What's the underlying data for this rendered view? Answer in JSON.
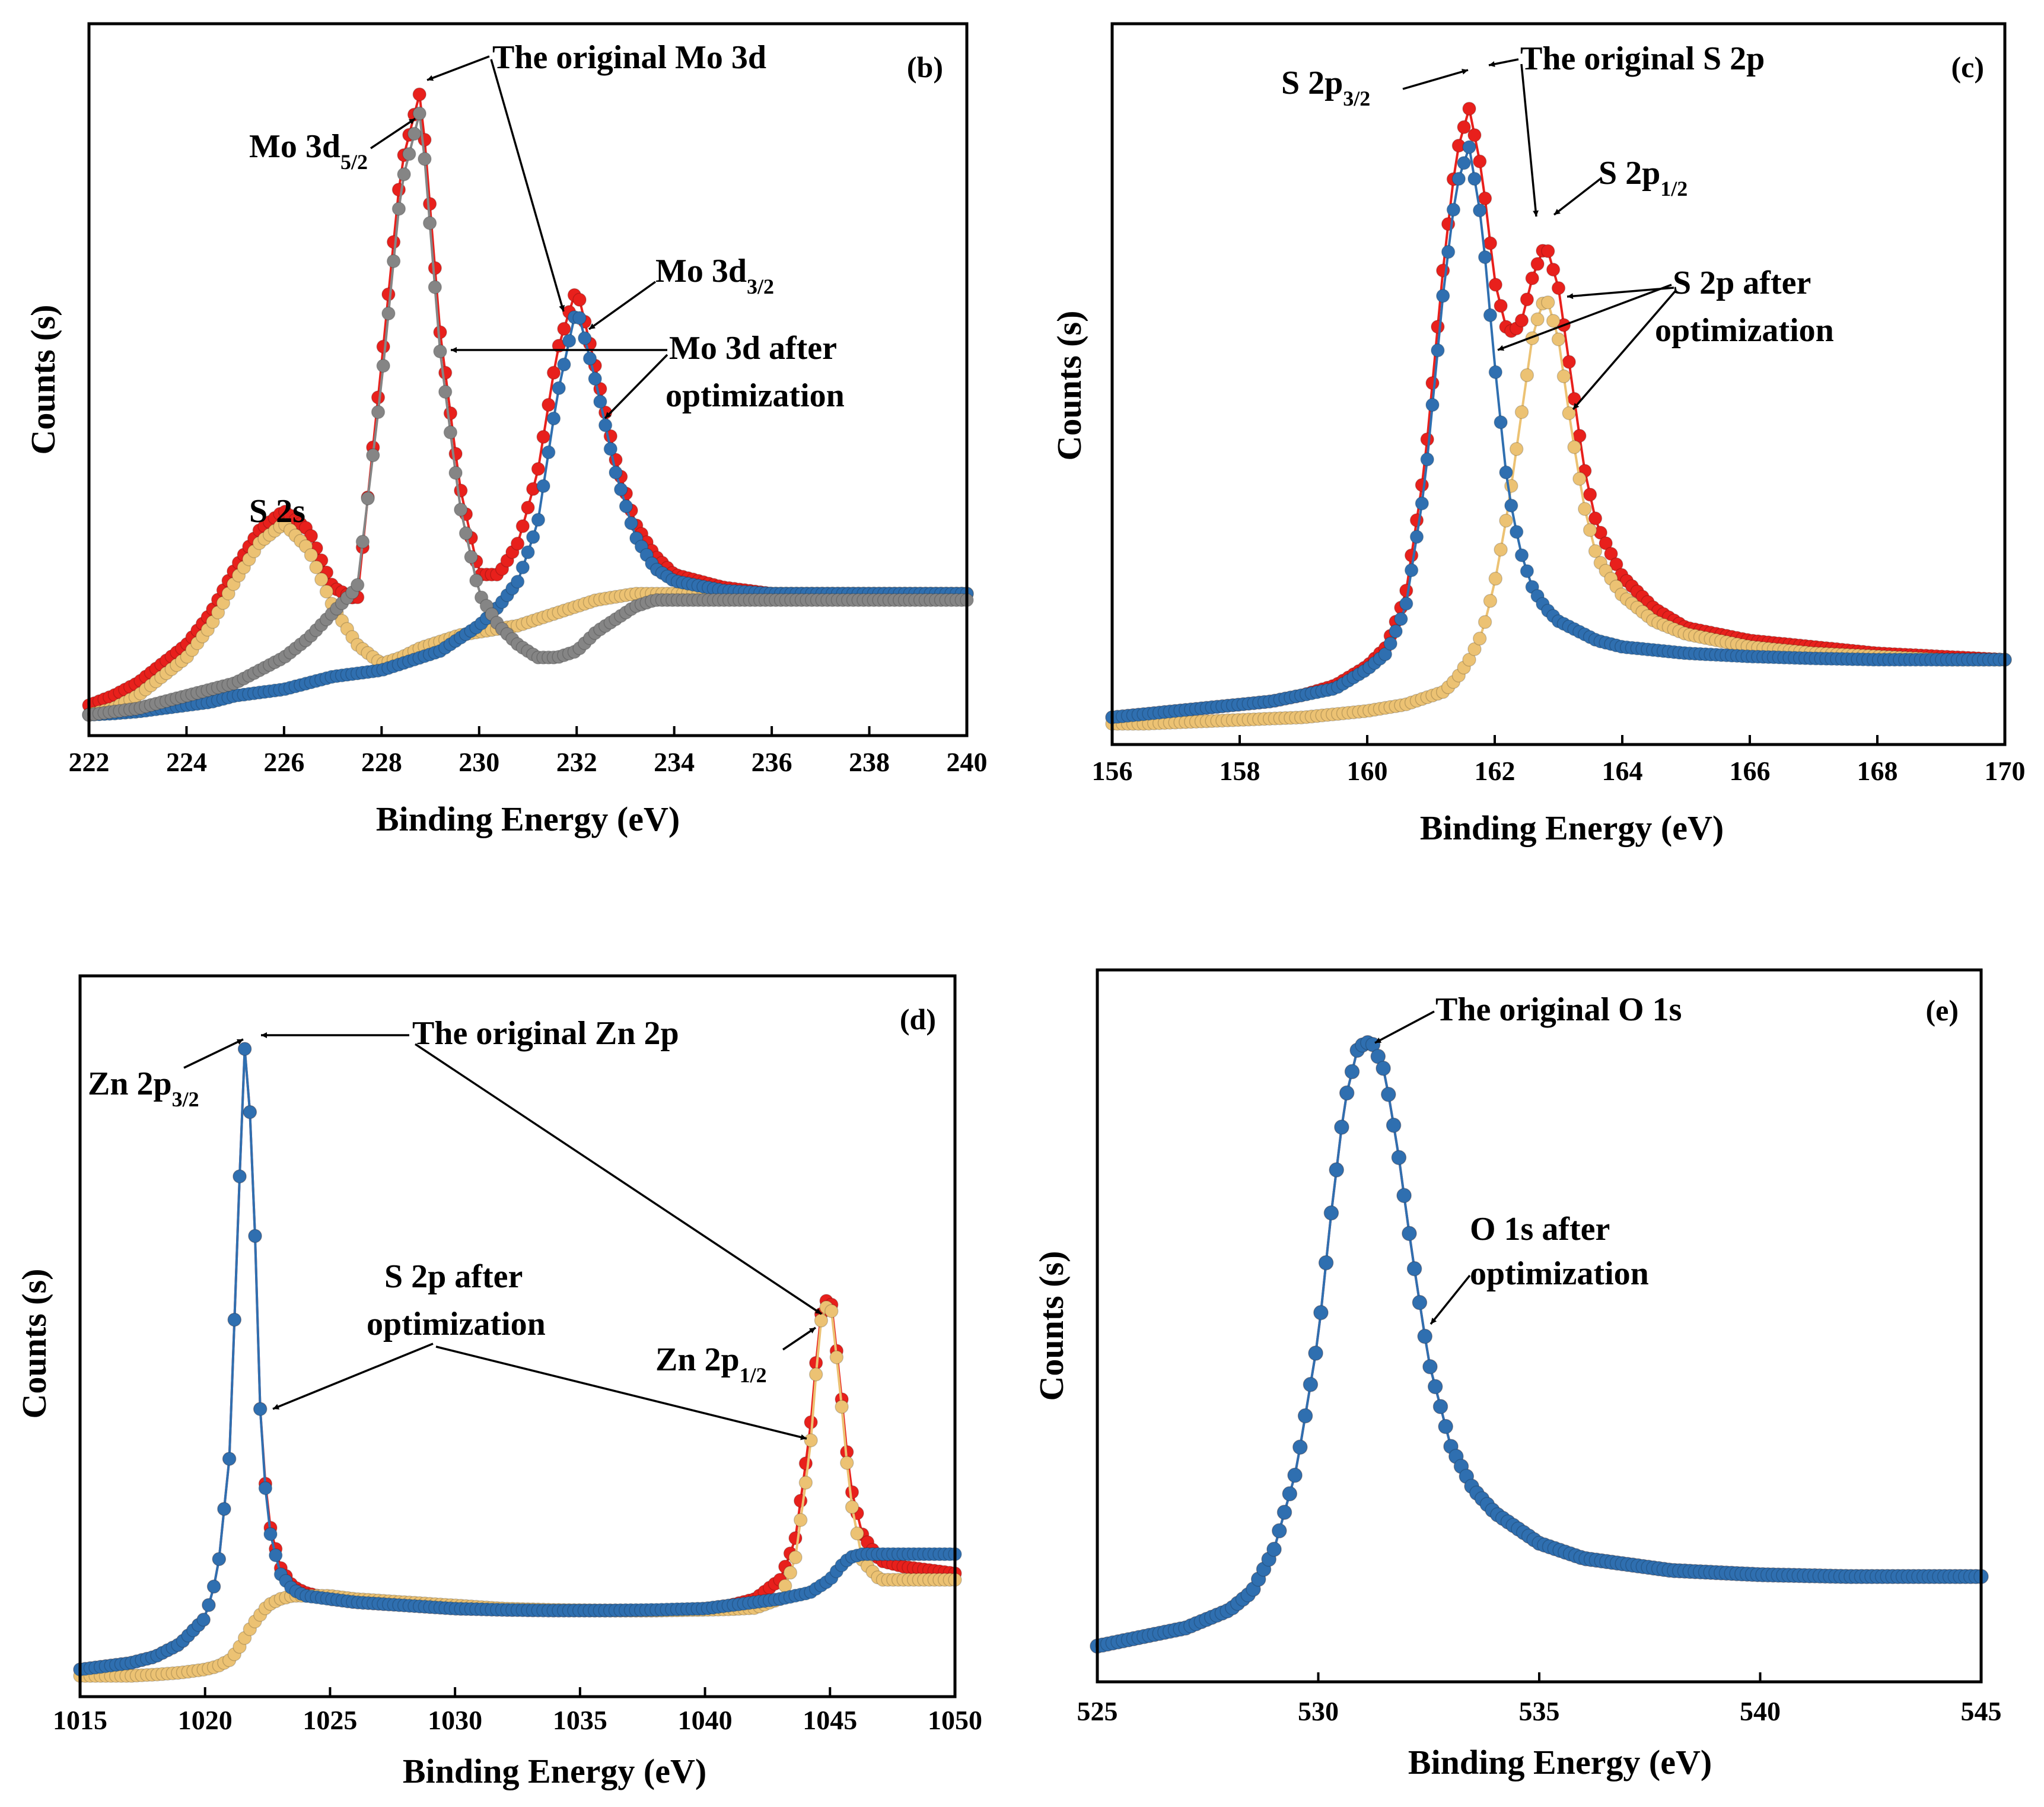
{
  "colors": {
    "original": "#e8201c",
    "blue": "#2f6fb0",
    "gray": "#858585",
    "yellow": "#ecc273",
    "axis": "#000000"
  },
  "chart_data": [
    {
      "type": "scatter",
      "panel": "(b)",
      "xlabel": "Binding Energy (eV)",
      "ylabel": "Counts (s)",
      "xlim": [
        222,
        240
      ],
      "ylim": [
        0,
        100
      ],
      "xticks": [
        "222",
        "224",
        "226",
        "228",
        "230",
        "232",
        "234",
        "236",
        "238",
        "240"
      ],
      "x": [
        222.0,
        222.5,
        223.0,
        223.5,
        224.0,
        224.5,
        225.0,
        225.5,
        226.0,
        226.5,
        227.0,
        227.5,
        228.0,
        228.4,
        228.8,
        229.2,
        229.6,
        230.0,
        230.4,
        230.8,
        231.2,
        231.6,
        232.0,
        232.4,
        232.8,
        233.2,
        233.6,
        234.0,
        235.0,
        236.0,
        237.0,
        238.0,
        239.0,
        240.0
      ],
      "series": [
        {
          "name": "The original Mo 3d",
          "color": "original",
          "values": [
            1.5,
            3,
            5,
            8,
            11,
            16,
            23,
            29,
            32,
            29,
            20,
            18,
            55,
            86,
            98,
            60,
            36,
            22,
            22,
            27,
            38,
            57,
            67,
            54,
            40,
            30,
            25,
            22,
            20,
            19,
            19,
            19,
            19,
            19
          ]
        },
        {
          "name": "Mo 3d 5/2 after optimization",
          "color": "gray",
          "values": [
            0,
            0.5,
            1,
            2,
            3,
            4,
            5,
            7,
            9,
            12,
            16,
            20,
            52,
            83,
            95,
            57,
            33,
            19,
            14,
            11,
            9,
            9,
            10,
            13,
            15,
            17,
            18,
            18,
            18,
            18,
            18,
            18,
            18,
            18
          ]
        },
        {
          "name": "Mo 3d 3/2 after optimization",
          "color": "blue",
          "values": [
            0,
            0.2,
            0.5,
            1,
            1.5,
            2,
            3,
            3.5,
            4,
            5,
            6,
            6.5,
            7,
            8,
            9,
            10,
            12,
            14,
            17,
            21,
            30,
            50,
            64,
            52,
            38,
            28,
            23,
            21,
            19.5,
            19,
            19,
            19,
            19,
            19
          ]
        },
        {
          "name": "S 2s after optimization",
          "color": "yellow",
          "values": [
            0,
            1,
            3,
            6,
            9,
            14,
            21,
            27,
            30,
            26,
            17,
            11,
            8,
            9,
            10.5,
            11.5,
            12.5,
            13,
            13.5,
            14,
            15,
            16,
            17,
            18,
            18.5,
            19,
            19,
            19,
            19,
            19,
            19,
            19,
            19,
            19
          ]
        }
      ],
      "annotations": [
        {
          "text": "The original Mo 3d",
          "sub": ""
        },
        {
          "text": "Mo 3d",
          "sub": "5/2"
        },
        {
          "text": "Mo 3d",
          "sub": "3/2"
        },
        {
          "text": "Mo 3d after",
          "sub": ""
        },
        {
          "text": "optimization",
          "sub": ""
        },
        {
          "text": "S 2s",
          "sub": ""
        }
      ]
    },
    {
      "type": "scatter",
      "panel": "(c)",
      "xlabel": "Binding Energy (eV)",
      "ylabel": "Counts (s)",
      "xlim": [
        156,
        170
      ],
      "ylim": [
        0,
        100
      ],
      "xticks": [
        "156",
        "158",
        "160",
        "162",
        "164",
        "166",
        "168",
        "170"
      ],
      "x": [
        156.0,
        156.5,
        157.0,
        157.5,
        158.0,
        158.5,
        159.0,
        159.5,
        160.0,
        160.3,
        160.6,
        160.9,
        161.2,
        161.4,
        161.6,
        161.8,
        162.0,
        162.2,
        162.4,
        162.6,
        162.8,
        163.0,
        163.2,
        163.4,
        163.6,
        164.0,
        164.5,
        165.0,
        166.0,
        167.0,
        168.0,
        169.0,
        170.0
      ],
      "series": [
        {
          "name": "The original S 2p",
          "color": "original",
          "values": [
            1,
            1.5,
            2,
            2.5,
            3,
            3.5,
            4.5,
            6,
            9,
            12,
            20,
            40,
            72,
            89,
            96,
            86,
            69,
            61,
            62,
            70,
            75,
            68,
            54,
            40,
            31,
            23,
            18,
            15,
            13,
            12,
            11,
            10.5,
            10
          ]
        },
        {
          "name": "S 2p3/2 after optimization",
          "color": "blue",
          "values": [
            1,
            1.5,
            2,
            2.5,
            3,
            3.5,
            4.5,
            5.5,
            8.5,
            11,
            18,
            37,
            68,
            84,
            90,
            78,
            56,
            37,
            27,
            21,
            18,
            16,
            15,
            14,
            13,
            12,
            11.5,
            11,
            10.5,
            10.2,
            10,
            10,
            10
          ]
        },
        {
          "name": "S 2p1/2 after optimization",
          "color": "yellow",
          "values": [
            0,
            0,
            0.2,
            0.4,
            0.6,
            0.8,
            1,
            1.5,
            2,
            2.5,
            3,
            4,
            5,
            7,
            10,
            14,
            22,
            33,
            47,
            61,
            67,
            60,
            46,
            34,
            26,
            20,
            16,
            14,
            12,
            11,
            10.5,
            10,
            10
          ]
        }
      ],
      "annotations": [
        {
          "text": "The original S 2p",
          "sub": ""
        },
        {
          "text": "S 2p",
          "sub": "3/2"
        },
        {
          "text": "S 2p",
          "sub": "1/2"
        },
        {
          "text": "S 2p after",
          "sub": ""
        },
        {
          "text": "optimization",
          "sub": ""
        }
      ]
    },
    {
      "type": "scatter",
      "panel": "(d)",
      "xlabel": "Binding Energy (eV)",
      "ylabel": "Counts (s)",
      "xlim": [
        1015,
        1050
      ],
      "ylim": [
        0,
        100
      ],
      "xticks": [
        "1015",
        "1020",
        "1025",
        "1030",
        "1035",
        "1040",
        "1045",
        "1050"
      ],
      "x": [
        1015,
        1016,
        1017,
        1018,
        1019,
        1020,
        1020.5,
        1021,
        1021.3,
        1021.6,
        1021.9,
        1022.2,
        1022.5,
        1023,
        1023.5,
        1024,
        1025,
        1026,
        1028,
        1030,
        1032,
        1034,
        1036,
        1038,
        1040,
        1041,
        1042,
        1043,
        1043.6,
        1044.2,
        1044.6,
        1045,
        1045.4,
        1045.8,
        1046.3,
        1047,
        1048,
        1049,
        1050
      ],
      "series": [
        {
          "name": "The original Zn 2p",
          "color": "original",
          "values": [
            1,
            1.5,
            2,
            3,
            5,
            9,
            16,
            35,
            70,
            99,
            82,
            42,
            25,
            17,
            14,
            13,
            12,
            11.5,
            11,
            10.5,
            10.3,
            10.2,
            10.2,
            10.2,
            10.5,
            11,
            12,
            15,
            21,
            38,
            56,
            60,
            46,
            30,
            22,
            18,
            17,
            16.5,
            16
          ]
        },
        {
          "name": "S 2p after optimization",
          "color": "blue",
          "values": [
            1,
            1.5,
            2,
            3,
            5,
            9,
            16,
            35,
            70,
            99,
            82,
            42,
            24,
            16,
            13.5,
            12.5,
            12,
            11.5,
            11,
            10.5,
            10.3,
            10.2,
            10.2,
            10.3,
            10.5,
            11,
            11.5,
            12,
            12.5,
            13,
            14,
            15,
            17,
            18.5,
            19,
            19,
            19,
            19,
            19
          ]
        },
        {
          "name": "Zn 2p1/2 after optimization",
          "color": "yellow",
          "values": [
            0,
            0,
            0,
            0.2,
            0.5,
            1,
            1.5,
            2.5,
            4,
            6,
            8,
            9.5,
            11,
            12,
            12.5,
            12.5,
            12.5,
            12,
            11.5,
            11,
            10.5,
            10.3,
            10.2,
            10.2,
            10.3,
            10.4,
            10.6,
            12,
            18,
            35,
            55,
            59,
            45,
            28,
            18,
            15,
            15,
            15,
            15
          ]
        }
      ],
      "annotations": [
        {
          "text": "The original Zn 2p",
          "sub": ""
        },
        {
          "text": "Zn 2p",
          "sub": "3/2"
        },
        {
          "text": "Zn 2p",
          "sub": "1/2"
        },
        {
          "text": "S 2p after",
          "sub": ""
        },
        {
          "text": "optimization",
          "sub": ""
        }
      ]
    },
    {
      "type": "scatter",
      "panel": "(e)",
      "xlabel": "Binding Energy (eV)",
      "ylabel": "Counts (s)",
      "xlim": [
        525,
        545
      ],
      "ylim": [
        0,
        100
      ],
      "xticks": [
        "525",
        "530",
        "535",
        "540",
        "545"
      ],
      "x": [
        525,
        526,
        527,
        528,
        528.5,
        529,
        529.5,
        530,
        530.3,
        530.6,
        530.9,
        531.2,
        531.5,
        531.8,
        532.1,
        532.5,
        533,
        533.5,
        534,
        535,
        536,
        537,
        538,
        540,
        542,
        545
      ],
      "series": [
        {
          "name": "The original O 1s",
          "color": "original",
          "values": [
            1,
            2.5,
            4,
            7,
            10,
            17,
            30,
            52,
            73,
            91,
            100,
            101,
            96,
            83,
            67,
            48,
            34,
            27,
            23,
            18,
            15.5,
            14.5,
            13.5,
            12.8,
            12.5,
            12.5
          ]
        },
        {
          "name": "O 1s after optimization",
          "color": "blue",
          "values": [
            1,
            2.5,
            4,
            7,
            10,
            17,
            30,
            52,
            73,
            91,
            100,
            101,
            96,
            83,
            67,
            48,
            34,
            27,
            23,
            18,
            15.5,
            14.5,
            13.5,
            12.8,
            12.5,
            12.5
          ]
        }
      ],
      "annotations": [
        {
          "text": "The original O 1s",
          "sub": ""
        },
        {
          "text": "O 1s after",
          "sub": ""
        },
        {
          "text": "optimization",
          "sub": ""
        }
      ]
    }
  ]
}
